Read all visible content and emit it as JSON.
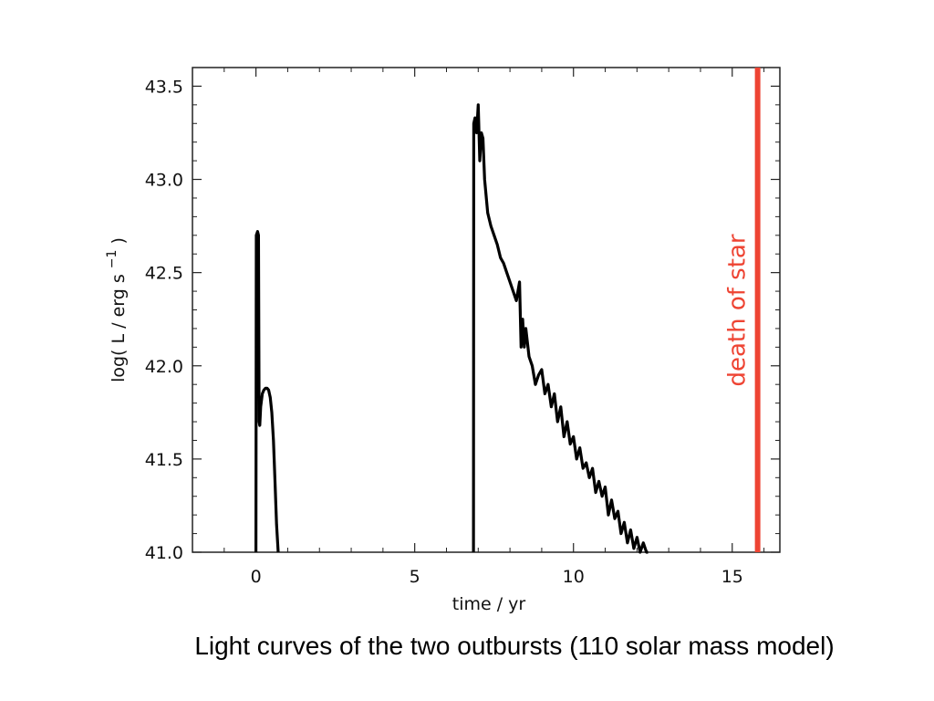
{
  "caption": "Light curves of the two outbursts (110 solar mass model)",
  "chart_data": {
    "type": "line",
    "xlabel": "time  /  yr",
    "ylabel": "log( L / erg s",
    "ylabel_superscript": "−1",
    "ylabel_close": ")",
    "xlim": [
      -2,
      16.5
    ],
    "ylim": [
      41.0,
      43.6
    ],
    "xticks": [
      0,
      5,
      10,
      15
    ],
    "xtick_labels": [
      "0",
      "5",
      "10",
      "15"
    ],
    "yticks": [
      41.0,
      41.5,
      42.0,
      42.5,
      43.0,
      43.5
    ],
    "ytick_labels": [
      "41.0",
      "41.5",
      "42.0",
      "42.5",
      "43.0",
      "43.5"
    ],
    "grid": false,
    "series": [
      {
        "color": "#000000",
        "x": [
          0.0,
          0.01,
          0.05,
          0.08,
          0.1,
          0.12,
          0.15,
          0.2,
          0.25,
          0.3,
          0.35,
          0.4,
          0.45,
          0.5,
          0.55,
          0.6,
          0.65,
          0.7
        ],
        "y": [
          41.0,
          42.7,
          42.72,
          42.7,
          41.7,
          41.68,
          41.78,
          41.85,
          41.87,
          41.88,
          41.88,
          41.87,
          41.83,
          41.75,
          41.6,
          41.38,
          41.15,
          41.0
        ]
      },
      {
        "color": "#000000",
        "x": [
          6.85,
          6.86,
          6.9,
          6.95,
          7.0,
          7.05,
          7.1,
          7.15,
          7.2,
          7.3,
          7.4,
          7.5,
          7.6,
          7.7,
          7.8,
          7.9,
          8.0,
          8.1,
          8.2,
          8.3,
          8.35,
          8.4,
          8.45,
          8.5,
          8.6,
          8.7,
          8.8,
          8.9,
          9.0,
          9.1,
          9.2,
          9.3,
          9.4,
          9.5,
          9.6,
          9.7,
          9.8,
          9.9,
          10.0,
          10.1,
          10.2,
          10.3,
          10.4,
          10.5,
          10.6,
          10.7,
          10.8,
          10.9,
          11.0,
          11.1,
          11.2,
          11.3,
          11.4,
          11.5,
          11.6,
          11.7,
          11.8,
          11.9,
          12.0,
          12.1,
          12.2,
          12.3,
          12.35
        ],
        "y": [
          41.0,
          43.3,
          43.33,
          43.25,
          43.4,
          43.1,
          43.25,
          43.22,
          43.0,
          42.82,
          42.75,
          42.7,
          42.65,
          42.58,
          42.55,
          42.5,
          42.45,
          42.4,
          42.35,
          42.45,
          42.1,
          42.25,
          42.1,
          42.2,
          42.05,
          42.0,
          41.9,
          41.95,
          41.98,
          41.85,
          41.9,
          41.78,
          41.85,
          41.7,
          41.78,
          41.62,
          41.7,
          41.58,
          41.62,
          41.5,
          41.56,
          41.45,
          41.48,
          41.4,
          41.45,
          41.32,
          41.38,
          41.3,
          41.35,
          41.2,
          41.28,
          41.18,
          41.22,
          41.1,
          41.16,
          41.05,
          41.12,
          41.02,
          41.08,
          41.0,
          41.05,
          41.0,
          41.0
        ]
      }
    ],
    "vline": {
      "x": 15.8,
      "color": "#ee4433",
      "label": "death of star"
    }
  }
}
